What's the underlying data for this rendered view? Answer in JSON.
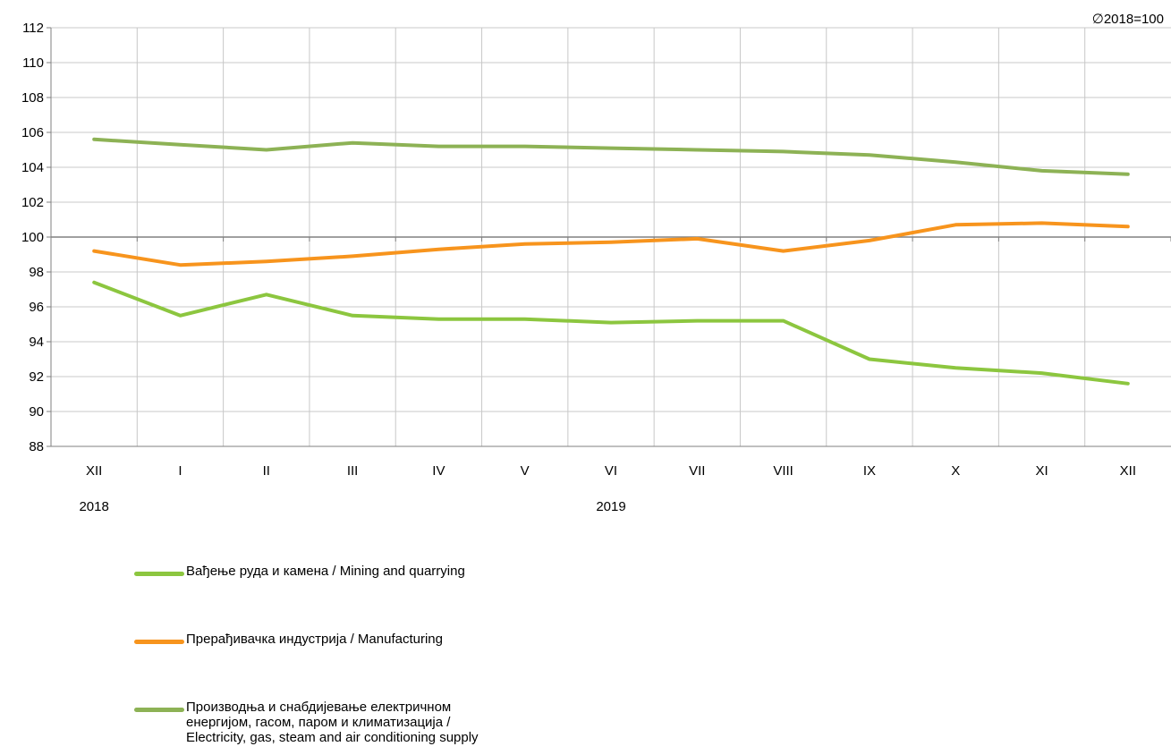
{
  "chart_data": {
    "type": "line",
    "note": "∅2018=100",
    "categories": [
      "XII",
      "I",
      "II",
      "III",
      "IV",
      "V",
      "VI",
      "VII",
      "VIII",
      "IX",
      "X",
      "XI",
      "XII"
    ],
    "year_labels": [
      {
        "label": "2018",
        "category_index": 0
      },
      {
        "label": "2019",
        "category_index": 6
      }
    ],
    "ylim": [
      88,
      112
    ],
    "yticks": [
      88,
      90,
      92,
      94,
      96,
      98,
      100,
      102,
      104,
      106,
      108,
      110,
      112
    ],
    "reference_line": 100,
    "grid": true,
    "legend_position": "bottom-left",
    "series": [
      {
        "name": "Вађење руда и камена / Mining and quarrying",
        "color": "#8cc63f",
        "values": [
          97.4,
          95.5,
          96.7,
          95.5,
          95.3,
          95.3,
          95.1,
          95.2,
          95.2,
          93.0,
          92.5,
          92.2,
          91.6
        ]
      },
      {
        "name": "Прерађивачка индустрија / Manufacturing",
        "color": "#f7941d",
        "values": [
          99.2,
          98.4,
          98.6,
          98.9,
          99.3,
          99.6,
          99.7,
          99.9,
          99.2,
          99.8,
          100.7,
          100.8,
          100.6
        ]
      },
      {
        "name": "Производња и снабдијевање електричном\nенергијом, гасом, паром и климатизација /\nElectricity, gas, steam and air conditioning supply",
        "color": "#8db255",
        "values": [
          105.6,
          105.3,
          105.0,
          105.4,
          105.2,
          105.2,
          105.1,
          105.0,
          104.9,
          104.7,
          104.3,
          103.8,
          103.6
        ]
      }
    ]
  }
}
